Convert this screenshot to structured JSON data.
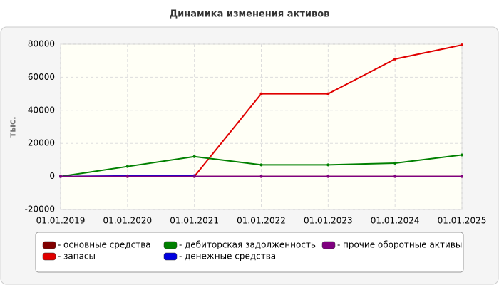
{
  "chart_data": {
    "type": "line",
    "title": "Динамика изменения активов",
    "y_label": "тыс.",
    "categories": [
      "01.01.2019",
      "01.01.2020",
      "01.01.2021",
      "01.01.2022",
      "01.01.2023",
      "01.01.2024",
      "01.01.2025"
    ],
    "series": [
      {
        "name": "основные средства",
        "color": "#800000",
        "values": [
          0,
          0,
          0,
          0,
          0,
          0,
          0
        ]
      },
      {
        "name": "запасы",
        "color": "#e00000",
        "values": [
          0,
          0,
          0,
          50000,
          50000,
          71000,
          79500
        ]
      },
      {
        "name": "дебиторская задолженность",
        "color": "#008000",
        "values": [
          0,
          6000,
          12000,
          7000,
          7000,
          8000,
          13000
        ]
      },
      {
        "name": "денежные средства",
        "color": "#0000e0",
        "values": [
          0,
          300,
          500,
          null,
          null,
          null,
          null
        ]
      },
      {
        "name": "прочие оборотные активы",
        "color": "#800080",
        "values": [
          0,
          0,
          0,
          0,
          0,
          0,
          0
        ]
      }
    ],
    "ylim": [
      -20000,
      80000
    ],
    "yticks": [
      -20000,
      0,
      20000,
      40000,
      60000,
      80000
    ],
    "grid": true
  }
}
